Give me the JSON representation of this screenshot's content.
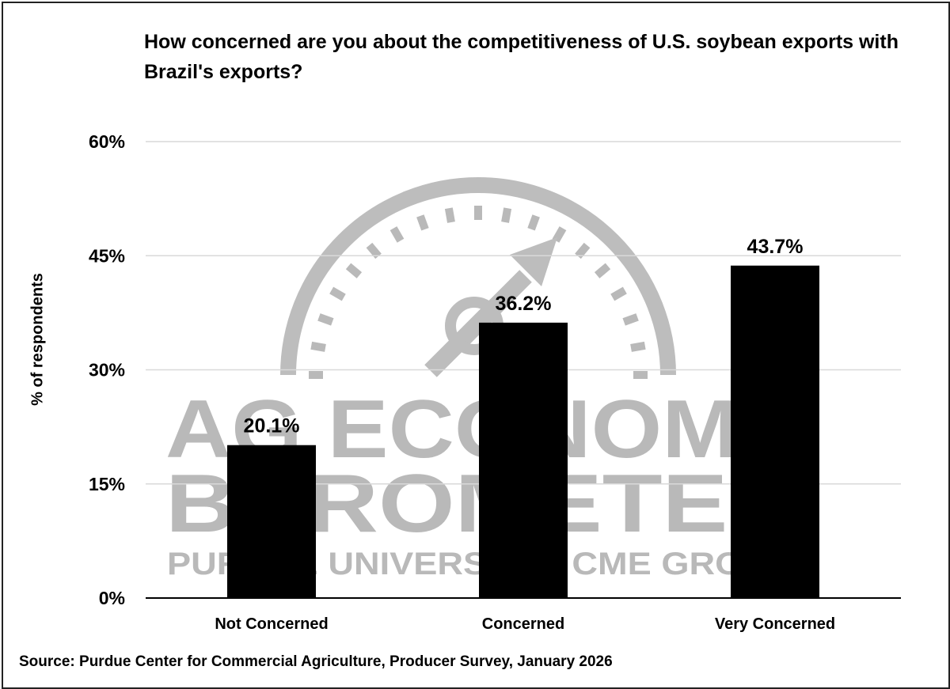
{
  "watermark": {
    "line1": "AG ECONOMY",
    "line2": "BAROMETER",
    "line3": "PURDUE UNIVERSITY | CME GROUP",
    "color": "#b9b9b9"
  },
  "chart_data": {
    "type": "bar",
    "title": "How concerned are you about the competitiveness of U.S. soybean exports with Brazil's exports?",
    "xlabel": "",
    "ylabel": "% of respondents",
    "categories": [
      "Not Concerned",
      "Concerned",
      "Very Concerned"
    ],
    "values": [
      20.1,
      36.2,
      43.7
    ],
    "data_labels": [
      "20.1%",
      "36.2%",
      "43.7%"
    ],
    "ylim": [
      0,
      60
    ],
    "yticks": [
      0,
      15,
      30,
      45,
      60
    ],
    "ytick_labels": [
      "0%",
      "15%",
      "30%",
      "45%",
      "60%"
    ],
    "grid": true,
    "legend": "none",
    "bar_color": "#000000",
    "source": "Source: Purdue Center for Commercial Agriculture, Producer Survey, January 2026"
  }
}
